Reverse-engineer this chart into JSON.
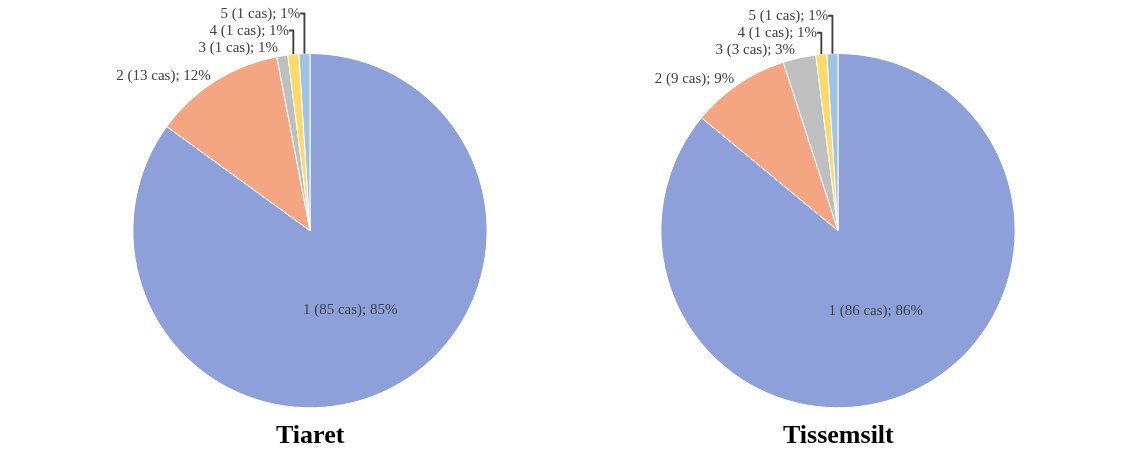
{
  "chart_data": [
    {
      "type": "pie",
      "title": "Tiaret",
      "categories": [
        "1 (85 cas); 85%",
        "2 (13 cas); 12%",
        "3 (1 cas); 1%",
        "4 (1 cas); 1%",
        "5 (1 cas); 1%"
      ],
      "values": [
        85,
        12,
        1,
        1,
        1
      ],
      "colors": [
        "#8ea0da",
        "#f4a582",
        "#bfbfbf",
        "#ffd966",
        "#9dc3e6"
      ],
      "legend": false
    },
    {
      "type": "pie",
      "title": "Tissemsilt",
      "categories": [
        "1 (86 cas); 86%",
        "2 (9 cas); 9%",
        "3 (3 cas); 3%",
        "4 (1 cas); 1%",
        "5 (1 cas); 1%"
      ],
      "values": [
        86,
        9,
        3,
        1,
        1
      ],
      "colors": [
        "#8ea0da",
        "#f4a582",
        "#bfbfbf",
        "#ffd966",
        "#9dc3e6"
      ],
      "legend": false
    }
  ]
}
